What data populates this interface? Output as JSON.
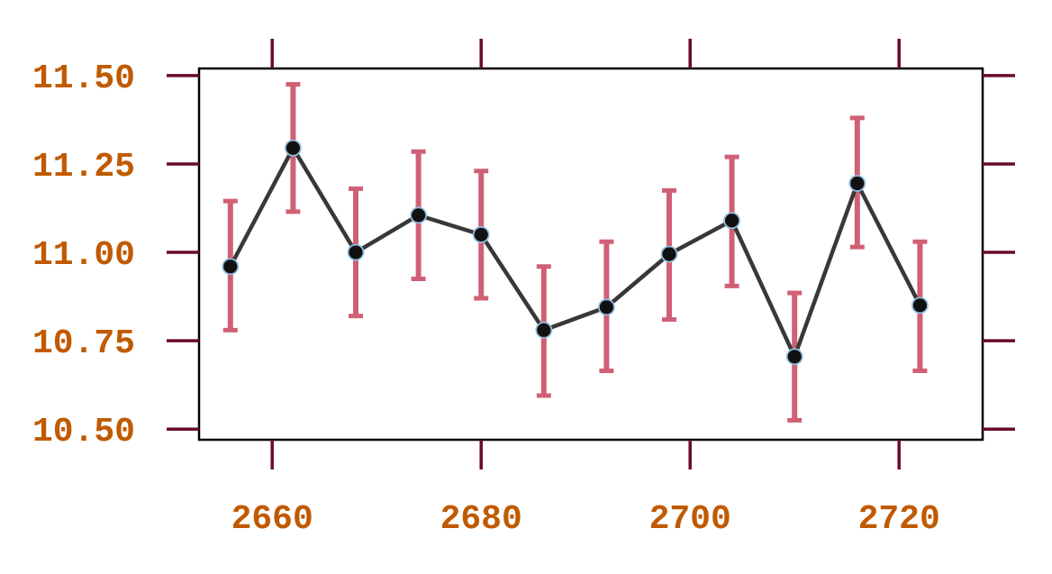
{
  "chart_data": {
    "type": "line",
    "title": "",
    "xlabel": "",
    "ylabel": "",
    "xlim": [
      2653,
      2728
    ],
    "ylim": [
      10.47,
      11.52
    ],
    "x_ticks": [
      2660,
      2680,
      2700,
      2720
    ],
    "x_tick_labels": [
      "2660",
      "2680",
      "2700",
      "2720"
    ],
    "y_ticks": [
      10.5,
      10.75,
      11.0,
      11.25,
      11.5
    ],
    "y_tick_labels": [
      "10.50",
      "10.75",
      "11.00",
      "11.25",
      "11.50"
    ],
    "grid": false,
    "series": [
      {
        "x": [
          2656,
          2662,
          2668,
          2674,
          2680,
          2686,
          2692,
          2698,
          2704,
          2710,
          2716,
          2722
        ],
        "y": [
          10.96,
          11.295,
          11.0,
          11.105,
          11.05,
          10.78,
          10.845,
          10.995,
          11.09,
          10.705,
          11.195,
          10.85
        ],
        "err_low": [
          10.78,
          11.115,
          10.82,
          10.925,
          10.87,
          10.595,
          10.665,
          10.81,
          10.905,
          10.525,
          11.015,
          10.665
        ],
        "err_high": [
          11.145,
          11.475,
          11.18,
          11.285,
          11.23,
          10.96,
          11.03,
          11.175,
          11.27,
          10.885,
          11.38,
          11.03
        ]
      }
    ],
    "colors": {
      "line": "#383838",
      "marker_fill": "#111111",
      "marker_edge": "#8fbde0",
      "error_bar": "#d06075",
      "tick": "#6b0a2a",
      "tick_label": "#c05a00",
      "frame": "#000000"
    }
  }
}
